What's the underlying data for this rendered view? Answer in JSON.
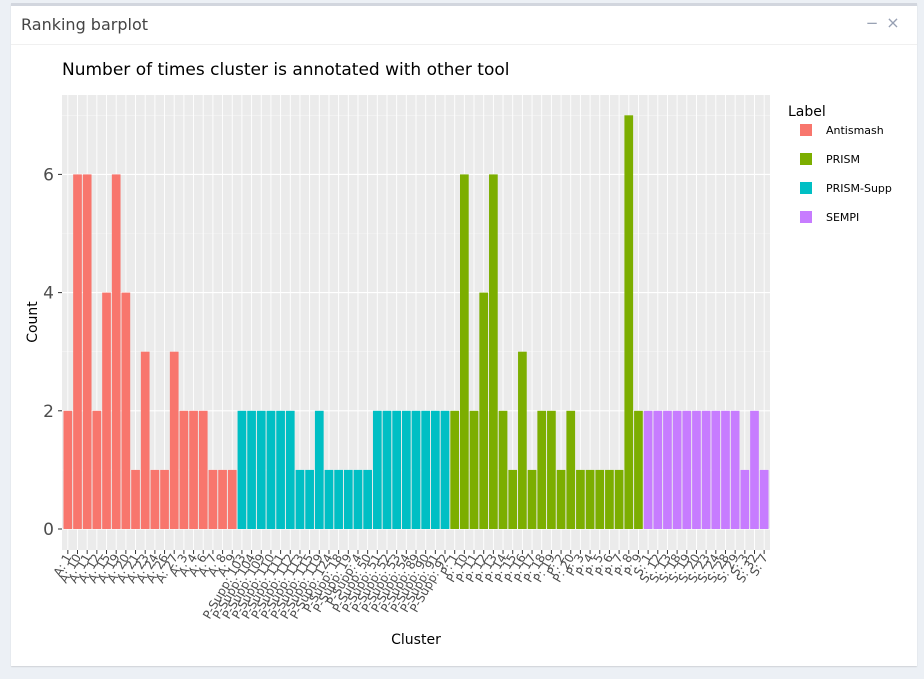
{
  "panel": {
    "title": "Ranking barplot",
    "minimize_glyph": "−",
    "close_glyph": "×"
  },
  "chart_data": {
    "type": "bar",
    "title": "Number of times cluster is annotated with other tool",
    "xlabel": "Cluster",
    "ylabel": "Count",
    "ylim": [
      0,
      7.3
    ],
    "yticks": [
      0,
      2,
      4,
      6
    ],
    "grid": true,
    "legend_position": "right",
    "legend_title": "Label",
    "series": [
      {
        "name": "Antismash",
        "color": "#F8766D",
        "categories": [
          "A: 1",
          "A: 10",
          "A: 11",
          "A: 12",
          "A: 15",
          "A: 19",
          "A: 20",
          "A: 21",
          "A: 23",
          "A: 24",
          "A: 26",
          "A: 27",
          "A: 3",
          "A: 4",
          "A: 6",
          "A: 7",
          "A: 8",
          "A: 9"
        ],
        "values": [
          2,
          6,
          6,
          2,
          4,
          6,
          4,
          1,
          3,
          1,
          1,
          3,
          2,
          2,
          2,
          1,
          1,
          1
        ]
      },
      {
        "name": "PRISM-Supp",
        "color": "#00BFC4",
        "categories": [
          "P-Supp: 103",
          "P-Supp: 104",
          "P-Supp: 109",
          "P-Supp: 110",
          "P-Supp: 111",
          "P-Supp: 112",
          "P-Supp: 113",
          "P-Supp: 115",
          "P-Supp: 119",
          "P-Supp: 124",
          "P-Supp: 18",
          "P-Supp: 19",
          "P-Supp: 4",
          "P-Supp: 50",
          "P-Supp: 51",
          "P-Supp: 52",
          "P-Supp: 53",
          "P-Supp: 54",
          "P-Supp: 89",
          "P-Supp: 90",
          "P-Supp: 91",
          "P-Supp: 92"
        ],
        "values": [
          2,
          2,
          2,
          2,
          2,
          2,
          1,
          1,
          2,
          1,
          1,
          1,
          1,
          1,
          2,
          2,
          2,
          2,
          2,
          2,
          2,
          2
        ]
      },
      {
        "name": "PRISM",
        "color": "#7CAE00",
        "categories": [
          "P: 1",
          "P: 10",
          "P: 11",
          "P: 12",
          "P: 13",
          "P: 14",
          "P: 15",
          "P: 16",
          "P: 17",
          "P: 18",
          "P: 19",
          "P: 2",
          "P: 20",
          "P: 3",
          "P: 4",
          "P: 5",
          "P: 6",
          "P: 7",
          "P: 8",
          "P: 9"
        ],
        "values": [
          2,
          6,
          2,
          4,
          6,
          2,
          1,
          3,
          1,
          2,
          2,
          1,
          2,
          1,
          1,
          1,
          1,
          1,
          7,
          2
        ]
      },
      {
        "name": "SEMPI",
        "color": "#C77CFF",
        "categories": [
          "S: 1",
          "S: 12",
          "S: 13",
          "S: 18",
          "S: 19",
          "S: 20",
          "S: 23",
          "S: 24",
          "S: 28",
          "S: 29",
          "S: 3",
          "S: 32",
          "S: 7"
        ],
        "values": [
          2,
          2,
          2,
          2,
          2,
          2,
          2,
          2,
          2,
          2,
          1,
          2,
          1
        ]
      }
    ],
    "legend_order": [
      "Antismash",
      "PRISM",
      "PRISM-Supp",
      "SEMPI"
    ]
  }
}
